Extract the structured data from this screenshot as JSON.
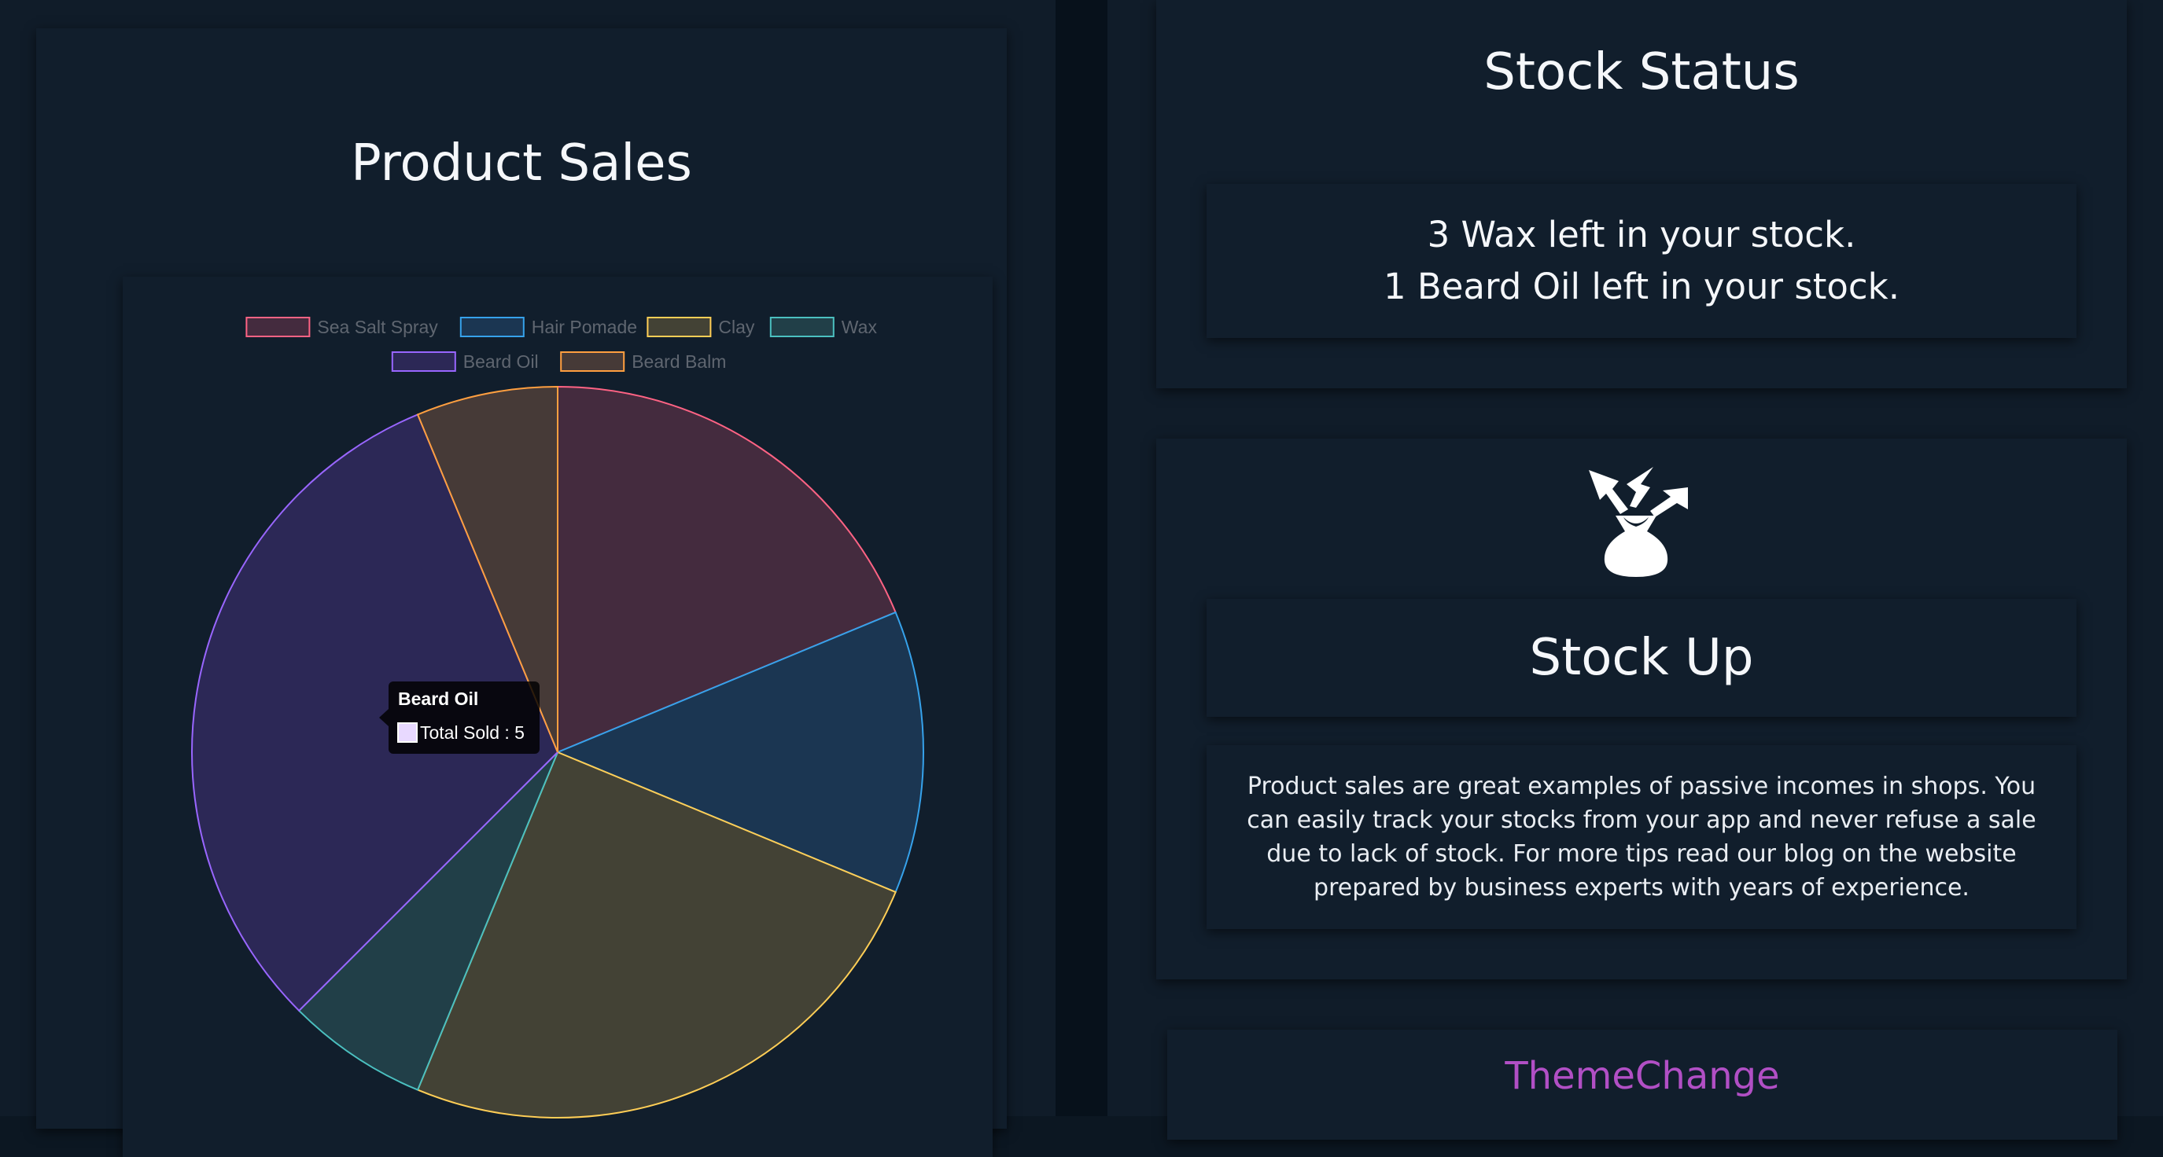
{
  "sales_panel": {
    "title": "Product Sales"
  },
  "chart_data": {
    "type": "pie",
    "categories": [
      "Sea Salt Spray",
      "Hair Pomade",
      "Clay",
      "Wax",
      "Beard Oil",
      "Beard Balm"
    ],
    "values": [
      3,
      2,
      4,
      1,
      5,
      1
    ],
    "unit_label": "Total Sold",
    "legend_position": "top",
    "colors": {
      "border": [
        "#ff6384",
        "#36a2eb",
        "#ffce56",
        "#4bc0c0",
        "#9966ff",
        "#ff9f40"
      ],
      "fill": [
        "#442b3e",
        "#1b3652",
        "#434235",
        "#213f48",
        "#2c2856",
        "#463a37"
      ]
    },
    "tooltip": {
      "title": "Beard Oil",
      "body": "Total Sold : 5",
      "swatch_color": "#e8d9ff"
    }
  },
  "stock_panel": {
    "title": "Stock Status",
    "messages": [
      "3 Wax left in your stock.",
      "1 Beard Oil left in your stock."
    ]
  },
  "stockup_panel": {
    "icon": "money-bag-icon",
    "title": "Stock Up",
    "description": "Product sales are great examples of passive incomes in shops. You can easily track your stocks from your app and never refuse a sale due to lack of stock. For more tips read our blog on the website prepared by business experts with years of experience."
  },
  "theme": {
    "label": "ThemeChange",
    "color": "#b14fc5"
  }
}
